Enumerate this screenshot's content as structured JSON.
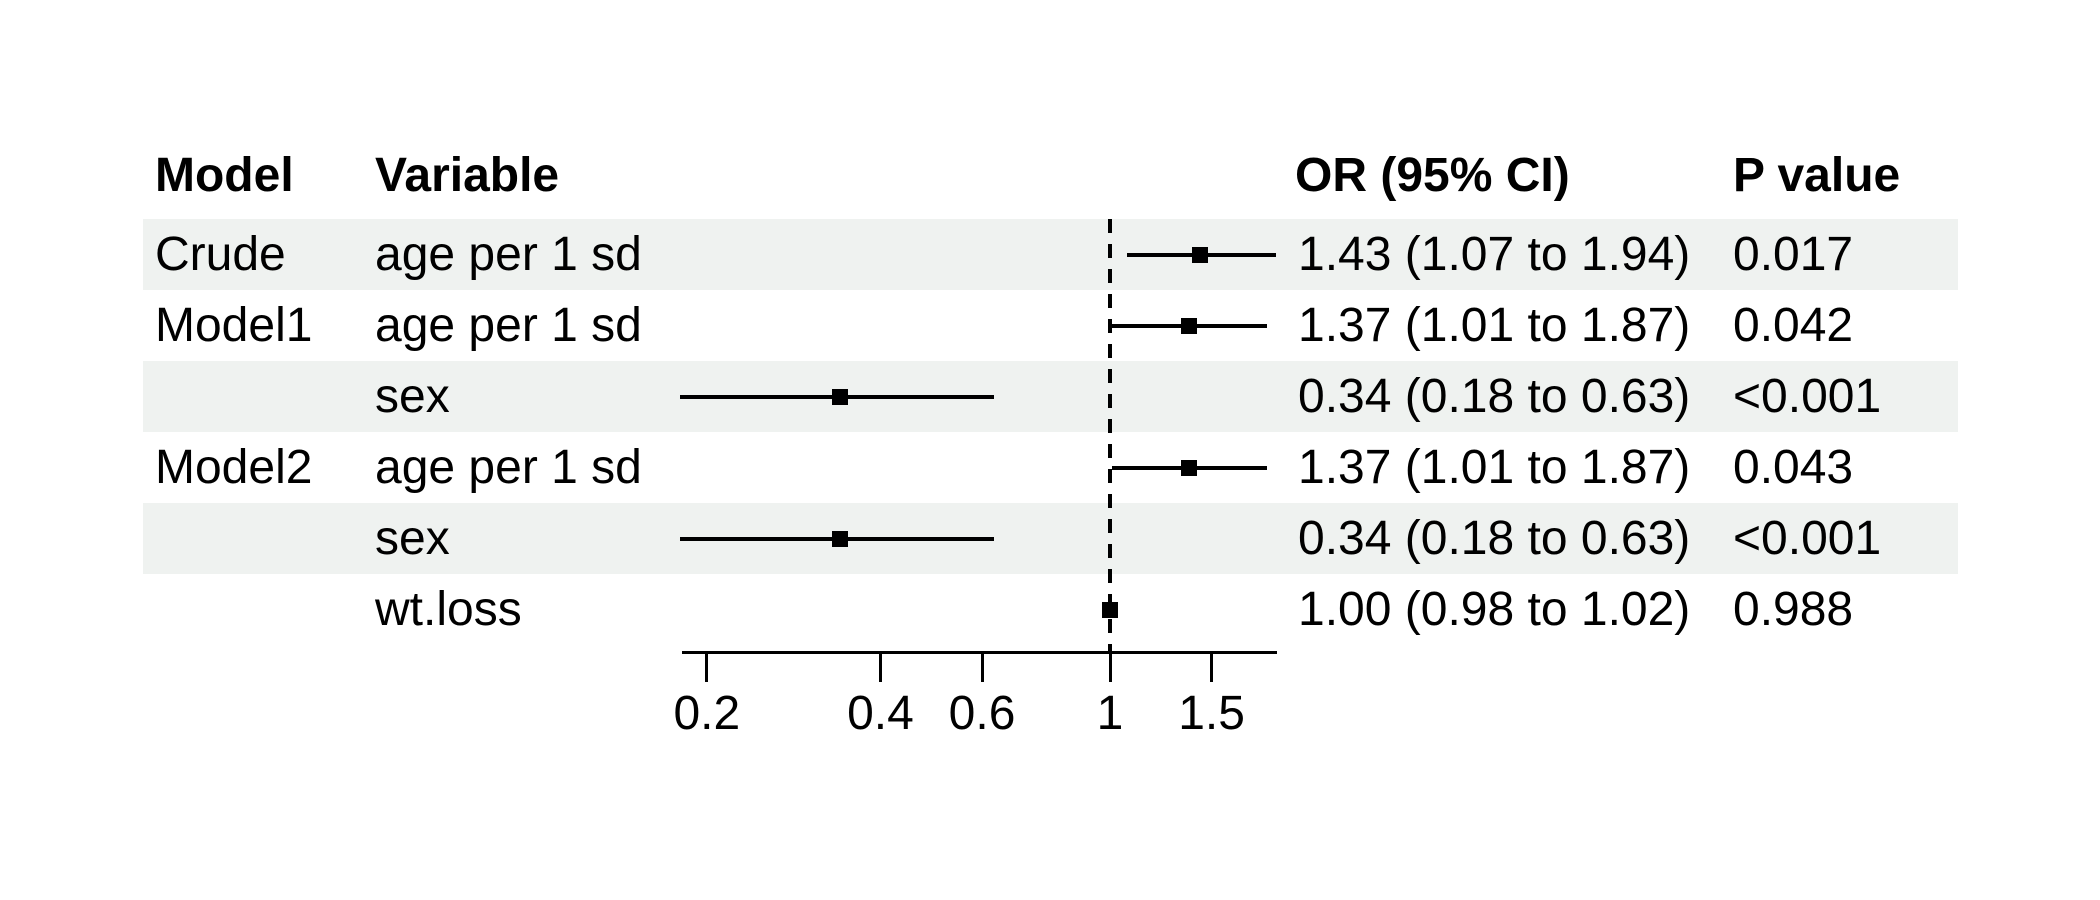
{
  "colors": {
    "background": "#ffffff",
    "row_shade": "#eff2f0",
    "text": "#000000",
    "marker": "#000000",
    "reference_line": "#000000"
  },
  "chart_data": {
    "type": "forest",
    "x_scale": "log",
    "x_ticks": [
      0.2,
      0.4,
      0.6,
      1,
      1.5
    ],
    "x_tick_labels": [
      "0.2",
      "0.4",
      "0.6",
      "1",
      "1.5"
    ],
    "reference_line": 1,
    "columns": {
      "model": "Model",
      "variable": "Variable",
      "or": "OR (95% CI)",
      "pvalue": "P value"
    },
    "rows": [
      {
        "model": "Crude",
        "variable": "age per 1 sd",
        "est": 1.43,
        "lo": 1.07,
        "hi": 1.94,
        "or_text": "1.43 (1.07 to 1.94)",
        "p": "0.017",
        "shaded": true
      },
      {
        "model": "Model1",
        "variable": "age per 1 sd",
        "est": 1.37,
        "lo": 1.01,
        "hi": 1.87,
        "or_text": "1.37 (1.01 to 1.87)",
        "p": "0.042",
        "shaded": false
      },
      {
        "model": "",
        "variable": "sex",
        "est": 0.34,
        "lo": 0.18,
        "hi": 0.63,
        "or_text": "0.34 (0.18 to 0.63)",
        "p": "<0.001",
        "shaded": true
      },
      {
        "model": "Model2",
        "variable": "age per 1 sd",
        "est": 1.37,
        "lo": 1.01,
        "hi": 1.87,
        "or_text": "1.37 (1.01 to 1.87)",
        "p": "0.043",
        "shaded": false
      },
      {
        "model": "",
        "variable": "sex",
        "est": 0.34,
        "lo": 0.18,
        "hi": 0.63,
        "or_text": "0.34 (0.18 to 0.63)",
        "p": "<0.001",
        "shaded": true
      },
      {
        "model": "",
        "variable": "wt.loss",
        "est": 1.0,
        "lo": 0.98,
        "hi": 1.02,
        "or_text": "1.00 (0.98 to 1.02)",
        "p": "0.988",
        "shaded": false
      }
    ]
  }
}
